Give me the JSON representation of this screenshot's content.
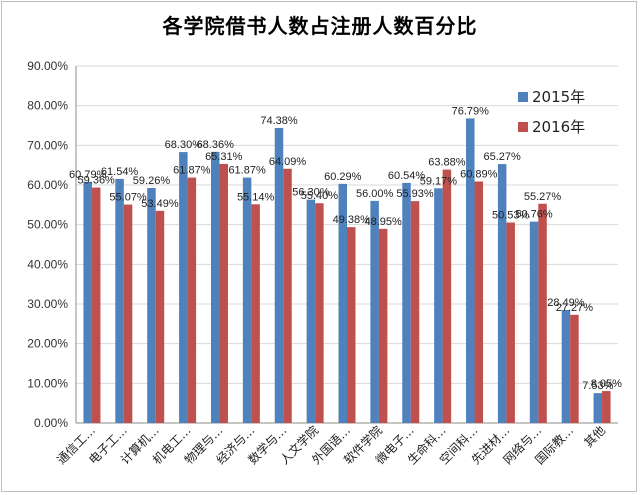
{
  "chart_data": {
    "type": "bar",
    "title": "各学院借书人数占注册人数百分比",
    "xlabel": "",
    "ylabel": "",
    "ylim": [
      0,
      90
    ],
    "y_ticks": [
      "0.00%",
      "10.00%",
      "20.00%",
      "30.00%",
      "40.00%",
      "50.00%",
      "60.00%",
      "70.00%",
      "80.00%",
      "90.00%"
    ],
    "grid": true,
    "legend_position": "top-right",
    "categories": [
      "通信工…",
      "电子工…",
      "计算机…",
      "机电工…",
      "物理与…",
      "经济与…",
      "数学与…",
      "人文学院",
      "外国语…",
      "软件学院",
      "微电子…",
      "生命科…",
      "空间科…",
      "先进材…",
      "网络与…",
      "国际教…",
      "其他"
    ],
    "series": [
      {
        "name": "2015年",
        "color": "#4f81bd",
        "values": [
          60.79,
          61.54,
          59.26,
          68.3,
          68.36,
          61.87,
          74.38,
          56.3,
          60.29,
          56.0,
          60.54,
          59.17,
          76.79,
          65.27,
          50.76,
          28.49,
          7.53
        ],
        "labels": [
          "60.79%",
          "61.54%",
          "59.26%",
          "68.30%",
          "68.36%",
          "61.87%",
          "74.38%",
          "56.30%",
          "60.29%",
          "56.00%",
          "60.54%",
          "59.17%",
          "76.79%",
          "65.27%",
          "50.76%",
          "28.49%",
          "7.53%"
        ]
      },
      {
        "name": "2016年",
        "color": "#c0504d",
        "values": [
          59.36,
          55.07,
          53.49,
          61.87,
          65.31,
          55.14,
          64.09,
          55.4,
          49.38,
          48.95,
          55.93,
          63.88,
          60.89,
          50.53,
          55.27,
          27.27,
          8.05
        ],
        "labels": [
          "59.36%",
          "55.07%",
          "53.49%",
          "61.87%",
          "65.31%",
          "55.14%",
          "64.09%",
          "55.40%",
          "49.38%",
          "48.95%",
          "55.93%",
          "63.88%",
          "60.89%",
          "50.53%",
          "55.27%",
          "27.27%",
          "8.05%"
        ]
      }
    ]
  }
}
